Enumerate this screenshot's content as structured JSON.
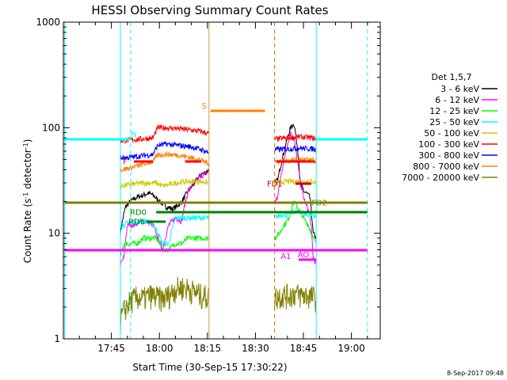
{
  "chart_data": {
    "type": "line",
    "title": "HESSI Observing Summary Count Rates",
    "xlabel": "Start Time (30-Sep-15 17:30:22)",
    "ylabel": "Count Rate (s-1 detector-1)",
    "ylabel_parts": [
      "Count Rate (s",
      "-1",
      " detector",
      "-1",
      ")"
    ],
    "footer": "8-Sep-2017 09:48",
    "yscale": "log",
    "ylim": [
      1,
      1000
    ],
    "xlim": [
      "17:30:22",
      "19:09"
    ],
    "x_units": "minutes since 17:30",
    "x_ticks": [
      "17:45",
      "18:00",
      "18:15",
      "18:30",
      "18:45",
      "19:00"
    ],
    "y_ticks": [
      "1",
      "10",
      "100",
      "1000"
    ],
    "legend_title": "Det 1,5,7",
    "legend_position": "right",
    "series": [
      {
        "name": "3 - 6 keV",
        "color": "#000000",
        "segments": [
          {
            "t": [
              17.8,
              19.5,
              21.0,
              23.0,
              25.0,
              26.5,
              28.0,
              30.0,
              32.0,
              34.0,
              35.5,
              37.0,
              39.0,
              41.0,
              43.0,
              44.5,
              45.5
            ],
            "v": [
              10,
              18,
              20,
              22,
              23,
              24,
              23,
              20,
              18,
              17,
              18,
              20,
              25,
              30,
              36,
              38,
              40
            ]
          },
          {
            "t": [
              66.0,
              67.0,
              68.0,
              69.0,
              70.0,
              71.0,
              72.0,
              73.0,
              74.0,
              75.0,
              76.0,
              77.0,
              78.0,
              79.0
            ],
            "v": [
              30,
              32,
              45,
              60,
              80,
              100,
              110,
              70,
              30,
              25,
              24,
              22,
              10,
              9
            ]
          }
        ]
      },
      {
        "name": "6 - 12 keV",
        "color": "#ff00ff",
        "segments": [
          {
            "t": [
              17.8,
              19.0,
              20.0,
              22.0,
              24.0,
              26.0,
              28.0,
              29.5,
              31.0,
              33.0,
              35.0,
              37.0,
              39.0,
              41.0,
              43.0,
              45.5
            ],
            "v": [
              5,
              6,
              12,
              12,
              13,
              13,
              12,
              9,
              7,
              12,
              14,
              13,
              25,
              30,
              35,
              38
            ]
          },
          {
            "t": [
              66.0,
              67.0,
              68.0,
              69.0,
              70.0,
              71.0,
              72.0,
              73.0,
              74.0,
              75.0,
              76.0,
              77.0,
              78.0,
              79.0
            ],
            "v": [
              20,
              22,
              35,
              50,
              70,
              90,
              80,
              50,
              30,
              22,
              18,
              15,
              6,
              5
            ]
          }
        ]
      },
      {
        "name": "12 - 25 keV",
        "color": "#00ff00",
        "segments": [
          {
            "t": [
              17.8,
              19.0,
              21.0,
              23.0,
              25.0,
              27.0,
              29.0,
              31.0,
              33.0,
              35.0,
              37.0,
              39.0,
              41.0,
              43.0,
              45.5
            ],
            "v": [
              6,
              8,
              8,
              8,
              9,
              9,
              9,
              7,
              7,
              8,
              8,
              9,
              9,
              9,
              9
            ]
          },
          {
            "t": [
              66.0,
              67.5,
              69.0,
              70.5,
              72.0,
              73.5,
              75.0,
              76.5,
              78.0,
              79.0
            ],
            "v": [
              9,
              10,
              12,
              14,
              20,
              17,
              14,
              12,
              9,
              8
            ]
          }
        ]
      },
      {
        "name": "25 - 50 keV",
        "color": "#00ffff",
        "segments": [
          {
            "t": [
              17.8,
              19.0,
              21.0,
              23.0,
              25.0,
              27.0,
              29.0,
              31.0,
              33.0,
              35.0,
              37.0,
              39.0,
              41.0,
              43.0,
              45.5
            ],
            "v": [
              12,
              12,
              13,
              13,
              13,
              13,
              11,
              8,
              8,
              14,
              14,
              14,
              14,
              14,
              14
            ]
          },
          {
            "t": [
              66.0,
              68.0,
              70.0,
              72.0,
              74.0,
              76.0,
              78.0,
              79.0
            ],
            "v": [
              14,
              15,
              15,
              16,
              16,
              15,
              15,
              14
            ]
          }
        ]
      },
      {
        "name": "50 - 100 keV",
        "color": "#cccc00",
        "segments": [
          {
            "t": [
              17.8,
              21.0,
              25.0,
              29.0,
              31.0,
              35.0,
              39.0,
              43.0,
              45.5
            ],
            "v": [
              28,
              29,
              30,
              30,
              28,
              30,
              31,
              31,
              30
            ]
          },
          {
            "t": [
              66.0,
              70.0,
              74.0,
              78.0,
              79.0
            ],
            "v": [
              30,
              31,
              31,
              31,
              30
            ]
          }
        ]
      },
      {
        "name": "100 - 300 keV",
        "color": "#ff0000",
        "segments": [
          {
            "t": [
              17.8,
              20.0,
              24.0,
              28.0,
              29.5,
              32.0,
              36.0,
              40.0,
              43.0,
              45.5
            ],
            "v": [
              75,
              76,
              78,
              80,
              100,
              100,
              98,
              95,
              92,
              88
            ]
          },
          {
            "t": [
              66.0,
              70.0,
              74.0,
              78.0,
              79.0
            ],
            "v": [
              78,
              80,
              82,
              80,
              78
            ]
          }
        ]
      },
      {
        "name": "300 - 800 keV",
        "color": "#0000ff",
        "segments": [
          {
            "t": [
              17.8,
              20.0,
              24.0,
              28.0,
              29.5,
              32.0,
              36.0,
              40.0,
              43.0,
              45.5
            ],
            "v": [
              52,
              52,
              54,
              56,
              68,
              70,
              68,
              66,
              62,
              58
            ]
          },
          {
            "t": [
              66.0,
              70.0,
              74.0,
              78.0,
              79.0
            ],
            "v": [
              62,
              63,
              64,
              63,
              62
            ]
          }
        ]
      },
      {
        "name": "800 - 7000 keV",
        "color": "#ff8000",
        "segments": [
          {
            "t": [
              17.8,
              20.0,
              24.0,
              28.0,
              29.5,
              32.0,
              36.0,
              40.0,
              43.0,
              45.5
            ],
            "v": [
              40,
              41,
              44,
              48,
              55,
              56,
              55,
              52,
              49,
              46
            ]
          },
          {
            "t": [
              66.0,
              70.0,
              74.0,
              78.0,
              79.0
            ],
            "v": [
              48,
              49,
              50,
              49,
              48
            ]
          }
        ]
      },
      {
        "name": "7000 - 20000 keV",
        "color": "#808000",
        "segments": [
          {
            "t": [
              17.8,
              19.5,
              21.0,
              23.0,
              25.0,
              27.0,
              29.0,
              31.0,
              33.0,
              35.0,
              37.0,
              39.0,
              41.0,
              43.0,
              45.5
            ],
            "v": [
              1.5,
              2,
              2.3,
              2.5,
              2.4,
              2.6,
              2.5,
              2.4,
              2.6,
              3.0,
              3.1,
              3.0,
              2.8,
              2.6,
              2.5
            ]
          },
          {
            "t": [
              66.0,
              68.0,
              70.0,
              72.0,
              74.0,
              76.0,
              78.0,
              79.0
            ],
            "v": [
              2.5,
              2.6,
              2.6,
              2.7,
              2.6,
              2.6,
              2.5,
              2.4
            ]
          }
        ]
      }
    ],
    "vertical_lines": [
      {
        "t": 0.37,
        "color": "#00ffff",
        "style": "solid"
      },
      {
        "t": 17.8,
        "color": "#00ffff",
        "style": "solid"
      },
      {
        "t": 21.0,
        "color": "#00ffff",
        "style": "dashed"
      },
      {
        "t": 45.5,
        "color": "#cc9933",
        "style": "solid"
      },
      {
        "t": 66.0,
        "color": "#cc6600",
        "style": "dashed"
      },
      {
        "t": 79.0,
        "color": "#00ffff",
        "style": "solid"
      },
      {
        "t": 95.0,
        "color": "#00ffff",
        "style": "dashed"
      }
    ],
    "flags": [
      {
        "label": "N",
        "color": "#00ffff",
        "level": 0.63,
        "intervals": [
          [
            0.4,
            21.0
          ],
          [
            79.0,
            95.0
          ]
        ],
        "label_t": 22.0,
        "label_side": "above"
      },
      {
        "label": "S",
        "color": "#ff8000",
        "level": 0.72,
        "intervals": [
          [
            46.0,
            63.0
          ]
        ],
        "label_t": 44.0,
        "label_side": "above"
      },
      {
        "label": "F",
        "color": "#ff0000",
        "level": 0.56,
        "intervals": [
          [
            22.0,
            28.0
          ],
          [
            38.0,
            43.0
          ],
          [
            66.5,
            78.5
          ]
        ],
        "label_t": 20.0,
        "label_side": "left"
      },
      {
        "label": "FD1",
        "color": "#cc0000",
        "level": 0.49,
        "intervals": [
          [
            72.5,
            77.5
          ]
        ],
        "label_t": 68.5,
        "label_side": "left"
      },
      {
        "label": "FD2",
        "color": "#808000",
        "level": 0.43,
        "intervals": [
          [
            0.4,
            95.0
          ]
        ],
        "label_t": 77.5,
        "label_side": "right"
      },
      {
        "label": "RD0",
        "color": "#008000",
        "level": 0.4,
        "intervals": [
          [
            29.0,
            95.0
          ]
        ],
        "label_t": 26.0,
        "label_side": "left"
      },
      {
        "label": "RD6",
        "color": "#008000",
        "level": 0.37,
        "intervals": [
          [
            26.0,
            32.0
          ]
        ],
        "label_t": 25.5,
        "label_side": "left"
      },
      {
        "label": "AO",
        "color": "#ff00ff",
        "level": 0.25,
        "intervals": [
          [
            73.5,
            79.0
          ]
        ],
        "label_t": 75.0,
        "label_side": "above"
      },
      {
        "label": "A1",
        "color": "#ff00ff",
        "level": 0.28,
        "intervals": [
          [
            0.4,
            95.0
          ]
        ],
        "label_t": 69.5,
        "label_side": "below"
      }
    ]
  }
}
